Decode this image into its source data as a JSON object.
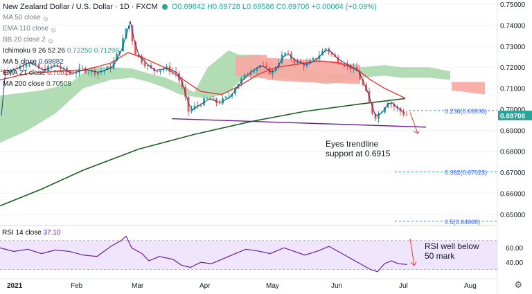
{
  "header": {
    "title": "New Zealand Dollar / U.S. Dollar · 1D · FXCM",
    "ohlc": "O0.69642 H0.69728 L0.69586 C0.69706 +0.00064 (+0.09%)"
  },
  "legend": [
    {
      "label": "MA 50 close",
      "value": ""
    },
    {
      "label": "EMA 110 close",
      "value": ""
    },
    {
      "label": "BB 20 close 2",
      "value": ""
    },
    {
      "label": "Ichimoku 9 26 52 26",
      "value": "0.72250  0.71298"
    },
    {
      "label": "MA 5 close",
      "value": "0.69882"
    },
    {
      "label": "EMA 21 close",
      "value": "0.70525"
    },
    {
      "label": "MA 200 close",
      "value": "0.70508"
    }
  ],
  "annotations": {
    "trendline_note": [
      "Eyes trendline",
      "support at 0.6915"
    ],
    "rsi_note": [
      "RSI well below",
      "50 mark"
    ]
  },
  "rsi_label": "RSI 14 close",
  "rsi_value": "37.10",
  "colors": {
    "up": "#26a69a",
    "down": "#ef5350",
    "cloud_green": "#a5d6a7",
    "cloud_red": "#f8a7a2",
    "ema21": "#e53935",
    "ma200": "#1b5e20",
    "ma5": "#1e3a8a",
    "trendline": "#6a1b9a",
    "rsi_line": "#6a1b9a",
    "rsi_band": "#ece0fb"
  },
  "chart_data": {
    "type": "candlestick",
    "price_axis": {
      "min": 0.645,
      "max": 0.752,
      "ticks": [
        "0.75000",
        "0.74000",
        "0.73000",
        "0.72000",
        "0.71000",
        "0.70000",
        "0.69000",
        "0.68000",
        "0.67000",
        "0.66000",
        "0.65000"
      ]
    },
    "time_axis": {
      "labels": [
        "2021",
        "Feb",
        "Mar",
        "Apr",
        "May",
        "Jun",
        "Jul",
        "Aug"
      ]
    },
    "last_price": "0.69706",
    "fib_levels": [
      {
        "label": "0.236(0.69936)",
        "value": 0.69936
      },
      {
        "label": "0.382(0.67023)",
        "value": 0.67023
      },
      {
        "label": "0.5(0.64668)",
        "value": 0.64668
      }
    ],
    "trendline": {
      "from": [
        "2021-03-19",
        0.6955
      ],
      "to": [
        "2021-07-13",
        0.6915
      ]
    },
    "rsi_axis": {
      "ticks": [
        "60.00",
        "40.00"
      ],
      "min": 22,
      "max": 86
    },
    "candles": [],
    "rsi": []
  }
}
